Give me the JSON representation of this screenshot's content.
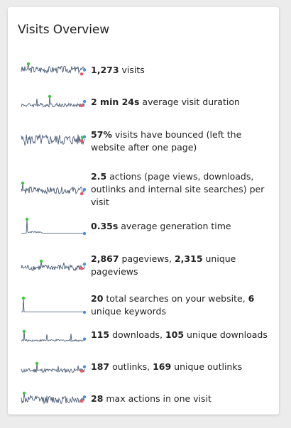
{
  "widget": {
    "title": "Visits Overview"
  },
  "colors": {
    "line": "#3a4d6b",
    "max": "#3ec83e",
    "min": "#ee5566",
    "last": "#4a90e2"
  },
  "metrics": [
    {
      "id": "visits",
      "parts": [
        {
          "bold": true,
          "text": "1,273"
        },
        {
          "bold": false,
          "text": " visits"
        }
      ]
    },
    {
      "id": "avg-duration",
      "parts": [
        {
          "bold": true,
          "text": "2 min 24s"
        },
        {
          "bold": false,
          "text": " average visit duration"
        }
      ]
    },
    {
      "id": "bounce",
      "parts": [
        {
          "bold": true,
          "text": "57%"
        },
        {
          "bold": false,
          "text": " visits have bounced (left the website after one page)"
        }
      ]
    },
    {
      "id": "actions",
      "parts": [
        {
          "bold": true,
          "text": "2.5"
        },
        {
          "bold": false,
          "text": " actions (page views, downloads, outlinks and internal site searches) per visit"
        }
      ]
    },
    {
      "id": "generation-time",
      "parts": [
        {
          "bold": true,
          "text": "0.35s"
        },
        {
          "bold": false,
          "text": " average generation time"
        }
      ]
    },
    {
      "id": "pageviews",
      "parts": [
        {
          "bold": true,
          "text": "2,867"
        },
        {
          "bold": false,
          "text": " pageviews, "
        },
        {
          "bold": true,
          "text": "2,315"
        },
        {
          "bold": false,
          "text": " unique pageviews"
        }
      ]
    },
    {
      "id": "searches",
      "parts": [
        {
          "bold": true,
          "text": "20"
        },
        {
          "bold": false,
          "text": " total searches on your website, "
        },
        {
          "bold": true,
          "text": "6"
        },
        {
          "bold": false,
          "text": " unique keywords"
        }
      ]
    },
    {
      "id": "downloads",
      "parts": [
        {
          "bold": true,
          "text": "115"
        },
        {
          "bold": false,
          "text": " downloads, "
        },
        {
          "bold": true,
          "text": "105"
        },
        {
          "bold": false,
          "text": " unique downloads"
        }
      ]
    },
    {
      "id": "outlinks",
      "parts": [
        {
          "bold": true,
          "text": "187"
        },
        {
          "bold": false,
          "text": " outlinks, "
        },
        {
          "bold": true,
          "text": "169"
        },
        {
          "bold": false,
          "text": " unique outlinks"
        }
      ]
    },
    {
      "id": "max-actions",
      "parts": [
        {
          "bold": true,
          "text": "28"
        },
        {
          "bold": false,
          "text": " max actions in one visit"
        }
      ]
    }
  ]
}
